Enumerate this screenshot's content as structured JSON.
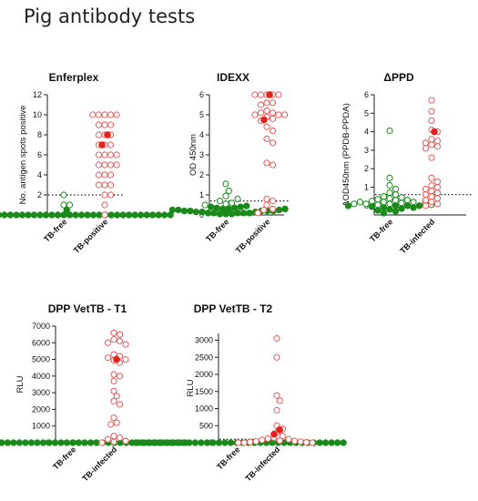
{
  "figure": {
    "title": "Pig antibody tests"
  },
  "colors": {
    "free": "#1a8a1a",
    "positive": "#e8201a",
    "positive_open": "#e85a5a"
  },
  "chart_data": [
    {
      "type": "scatter",
      "title": "Enferplex",
      "ylabel": "No. antigen spots positive",
      "ylim": [
        0,
        12
      ],
      "yticks": [
        0,
        2,
        4,
        6,
        8,
        10,
        12
      ],
      "cutoff": 2,
      "categories": [
        "TB-free",
        "TB-positive"
      ],
      "series": [
        {
          "category": "TB-free",
          "color_key": "free",
          "values": [
            0,
            0,
            0,
            0,
            0,
            0,
            0,
            0,
            0,
            0,
            0,
            0,
            0,
            0,
            0,
            0,
            0,
            0,
            0,
            0,
            0,
            0,
            0,
            0,
            0,
            0,
            0,
            0,
            0,
            0,
            0,
            0,
            0,
            0,
            0,
            0,
            0.5,
            1,
            1,
            2
          ]
        },
        {
          "category": "TB-positive",
          "color_key": "positive",
          "values": [
            10,
            10,
            10,
            10,
            10,
            9,
            9,
            9,
            8,
            8,
            8,
            7,
            7,
            7,
            6,
            6,
            6,
            6,
            5,
            5,
            5,
            5,
            4,
            4,
            4,
            3,
            3,
            3,
            2,
            2,
            1,
            0
          ],
          "filled": [
            8,
            7
          ]
        }
      ]
    },
    {
      "type": "scatter",
      "title": "IDEXX",
      "ylabel": "OD 450nm",
      "ylim": [
        0,
        6
      ],
      "yticks": [
        0,
        1,
        2,
        3,
        4,
        5,
        6
      ],
      "cutoff": 0.7,
      "categories": [
        "TB-free",
        "TB-positive"
      ],
      "series": [
        {
          "category": "TB-free",
          "color_key": "free",
          "values": [
            0.05,
            0.05,
            0.05,
            0.1,
            0.1,
            0.1,
            0.1,
            0.1,
            0.15,
            0.15,
            0.15,
            0.2,
            0.2,
            0.2,
            0.2,
            0.2,
            0.25,
            0.25,
            0.25,
            0.3,
            0.3,
            0.3,
            0.35,
            0.35,
            0.4,
            0.4,
            0.45,
            0.5,
            0.55,
            0.6,
            0.7,
            0.8,
            0.95,
            1.2,
            1.55
          ]
        },
        {
          "category": "TB-positive",
          "color_key": "positive",
          "values": [
            6,
            6,
            6,
            6,
            6,
            5.6,
            5.6,
            5.5,
            5.2,
            5.1,
            5.1,
            5,
            5,
            5,
            4.9,
            4.8,
            4.7,
            4.4,
            4.2,
            3.8,
            3.6,
            2.6,
            2.5,
            0.8,
            0.7,
            0.5,
            0.3,
            0.25,
            0.1
          ],
          "filled": [
            6,
            4.75
          ]
        }
      ]
    },
    {
      "type": "scatter",
      "title": "ΔPPD",
      "ylabel": "ΔOD450nm (PPDB-PPDA)",
      "ylim": [
        -0.5,
        6
      ],
      "yticks": [
        0,
        1,
        2,
        3,
        4,
        5,
        6
      ],
      "cutoff": 0.6,
      "categories": [
        "TB-free",
        "TB-infected"
      ],
      "series": [
        {
          "category": "TB-free",
          "color_key": "free",
          "values": [
            4.05,
            1.5,
            1.1,
            0.9,
            0.7,
            0.6,
            0.5,
            0.45,
            0.4,
            0.35,
            0.3,
            0.3,
            0.25,
            0.2,
            0.2,
            0.15,
            0.1,
            0.1,
            0.05,
            0,
            0,
            0,
            -0.05,
            -0.1,
            -0.1,
            -0.15,
            -0.2,
            -0.25,
            -0.3,
            -0.4,
            0.2,
            0.15,
            0.1,
            0.05,
            0
          ]
        },
        {
          "category": "TB-infected",
          "color_key": "positive",
          "values": [
            5.7,
            5.1,
            4.6,
            4.1,
            4,
            3.6,
            3.5,
            3.4,
            3.3,
            3.2,
            3.1,
            2.6,
            1.5,
            1.3,
            1.1,
            1,
            0.9,
            0.8,
            0.7,
            0.6,
            0.5,
            0.4,
            0.3,
            0.2,
            0.1,
            0
          ],
          "filled": [
            4
          ]
        }
      ]
    },
    {
      "type": "scatter",
      "title": "DPP VetTB - T1",
      "ylabel": "RLU",
      "ylim": [
        0,
        7000
      ],
      "yticks": [
        0,
        1000,
        2000,
        3000,
        4000,
        5000,
        6000,
        7000
      ],
      "cutoff": 100,
      "categories": [
        "TB-free",
        "TB-infected"
      ],
      "series": [
        {
          "category": "TB-free",
          "color_key": "free",
          "values": [
            0,
            0,
            0,
            0,
            0,
            0,
            0,
            0,
            0,
            0,
            0,
            0,
            0,
            0,
            0,
            0,
            0,
            0,
            0,
            0,
            0,
            0,
            0,
            0,
            0,
            0,
            0,
            0,
            0,
            0,
            0,
            0,
            0,
            0,
            0,
            0,
            0,
            0,
            0,
            0
          ]
        },
        {
          "category": "TB-infected",
          "color_key": "positive",
          "values": [
            6600,
            6500,
            6200,
            6100,
            6000,
            5900,
            5300,
            5200,
            5100,
            5000,
            4950,
            4800,
            4100,
            4000,
            3700,
            3100,
            2800,
            2500,
            2300,
            1500,
            1200,
            1100,
            400,
            300,
            200,
            100,
            50,
            0
          ],
          "filled": [
            5000
          ]
        }
      ]
    },
    {
      "type": "scatter",
      "title": "DPP VetTB - T2",
      "ylabel": "RLU",
      "ylim": [
        0,
        3200
      ],
      "yticks": [
        0,
        500,
        1000,
        1500,
        2000,
        2500,
        3000
      ],
      "cutoff": 100,
      "categories": [
        "TB-free",
        "TB-infected"
      ],
      "series": [
        {
          "category": "TB-free",
          "color_key": "free",
          "values": [
            0,
            0,
            0,
            0,
            0,
            0,
            0,
            0,
            0,
            0,
            0,
            0,
            0,
            0,
            0,
            0,
            0,
            0,
            0,
            0,
            0,
            0,
            0,
            0,
            0,
            0,
            0,
            0,
            0,
            0,
            0,
            0,
            0,
            0,
            0,
            0
          ]
        },
        {
          "category": "TB-infected",
          "color_key": "positive",
          "values": [
            3050,
            2500,
            1380,
            1230,
            950,
            500,
            400,
            300,
            200,
            150,
            120,
            100,
            80,
            60,
            50,
            40,
            30,
            20,
            10,
            0,
            0,
            0
          ],
          "filled": [
            380,
            250
          ]
        }
      ]
    }
  ]
}
